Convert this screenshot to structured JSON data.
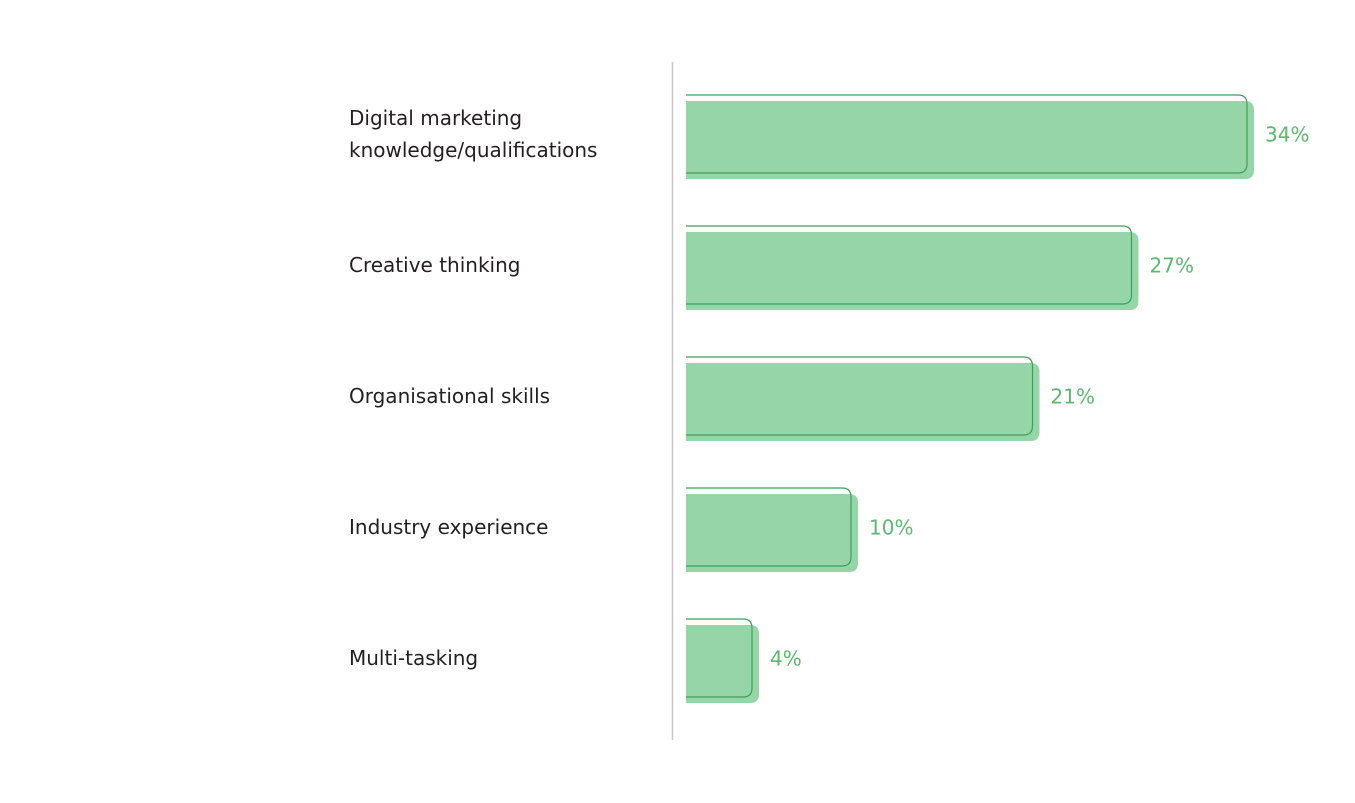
{
  "chart_data": {
    "type": "bar",
    "orientation": "horizontal",
    "categories": [
      "Digital marketing knowledge/qualifications",
      "Creative thinking",
      "Organisational skills",
      "Industry experience",
      "Multi-tasking"
    ],
    "values": [
      34,
      27,
      21,
      10,
      4
    ],
    "value_labels": [
      "34%",
      "27%",
      "21%",
      "10%",
      "4%"
    ],
    "color": "#95d5a8",
    "edge_color": "#3aa05a"
  }
}
